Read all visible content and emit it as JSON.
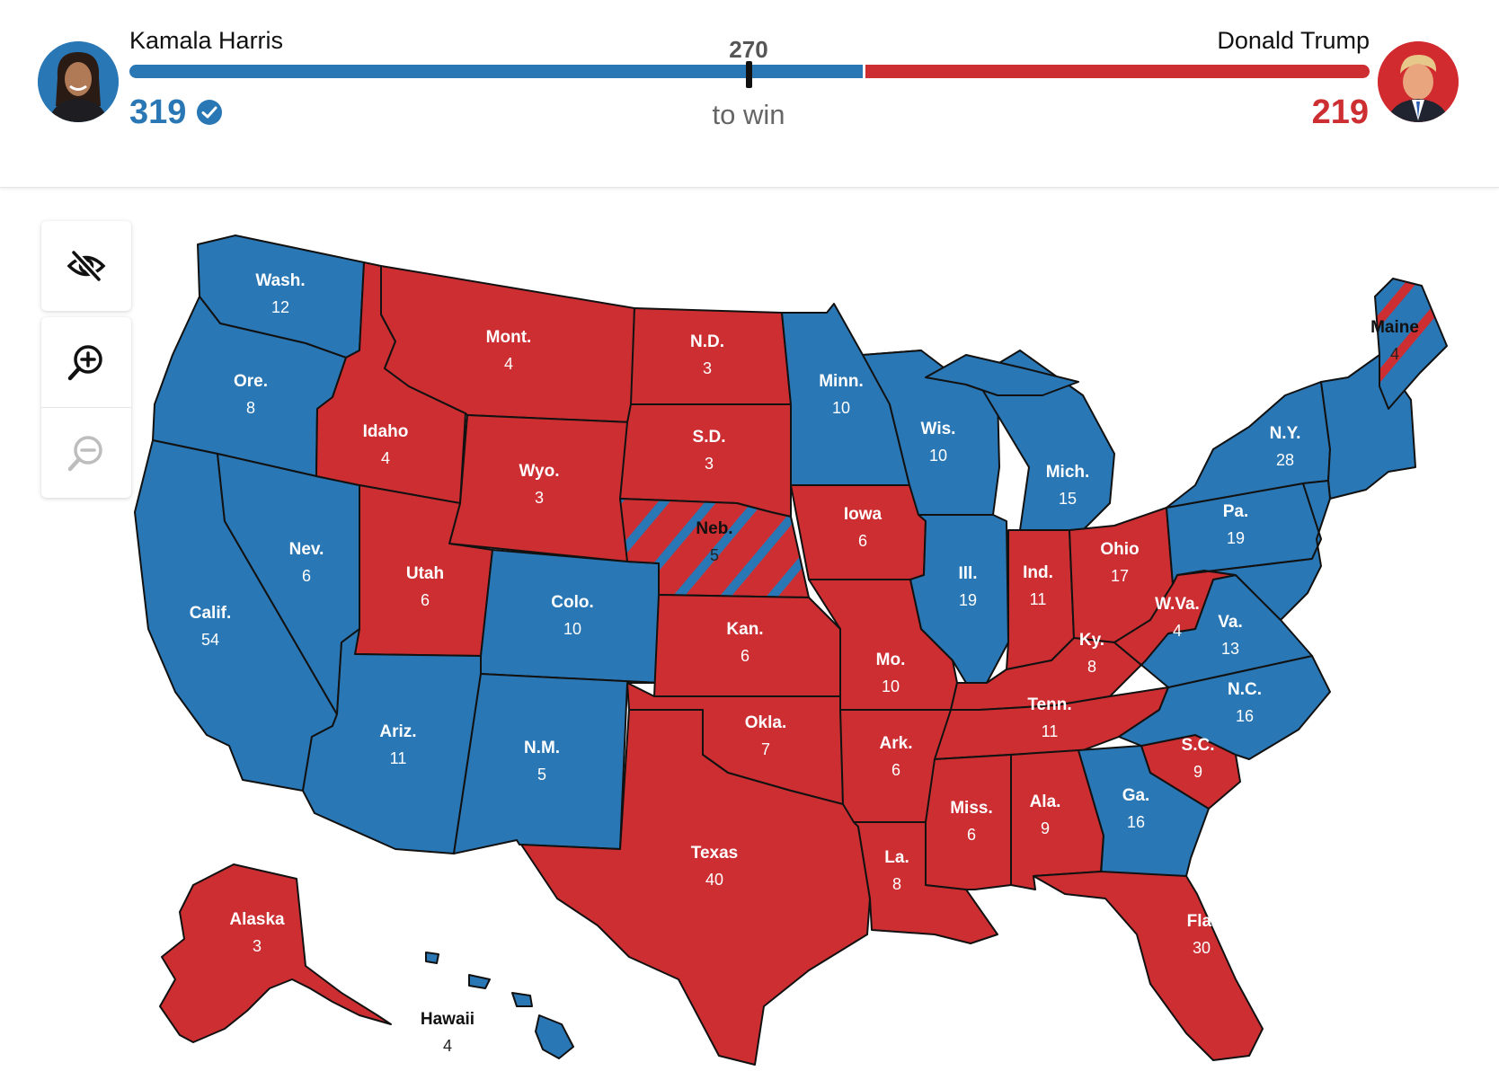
{
  "colors": {
    "dem": "#2a77b5",
    "rep": "#cc2e32"
  },
  "header": {
    "dem": {
      "name": "Kamala Harris",
      "votes": "319",
      "status": "check-icon"
    },
    "rep": {
      "name": "Donald Trump",
      "votes": "219"
    },
    "threshold": "270",
    "threshold_label": "to win"
  },
  "controls": [
    {
      "name": "hide-labels-button",
      "icon": "eye-slash-icon"
    },
    {
      "name": "zoom-in-button",
      "icon": "zoom-in-icon"
    },
    {
      "name": "zoom-out-button",
      "icon": "zoom-out-icon",
      "disabled": true
    }
  ],
  "states": [
    {
      "id": "wa",
      "name": "Wash.",
      "ev": "12",
      "party": "dem"
    },
    {
      "id": "or",
      "name": "Ore.",
      "ev": "8",
      "party": "dem"
    },
    {
      "id": "ca",
      "name": "Calif.",
      "ev": "54",
      "party": "dem"
    },
    {
      "id": "nv",
      "name": "Nev.",
      "ev": "6",
      "party": "dem"
    },
    {
      "id": "id",
      "name": "Idaho",
      "ev": "4",
      "party": "rep"
    },
    {
      "id": "mt",
      "name": "Mont.",
      "ev": "4",
      "party": "rep"
    },
    {
      "id": "wy",
      "name": "Wyo.",
      "ev": "3",
      "party": "rep"
    },
    {
      "id": "ut",
      "name": "Utah",
      "ev": "6",
      "party": "rep"
    },
    {
      "id": "az",
      "name": "Ariz.",
      "ev": "11",
      "party": "dem"
    },
    {
      "id": "co",
      "name": "Colo.",
      "ev": "10",
      "party": "dem"
    },
    {
      "id": "nm",
      "name": "N.M.",
      "ev": "5",
      "party": "dem"
    },
    {
      "id": "nd",
      "name": "N.D.",
      "ev": "3",
      "party": "rep"
    },
    {
      "id": "sd",
      "name": "S.D.",
      "ev": "3",
      "party": "rep"
    },
    {
      "id": "ne",
      "name": "Neb.",
      "ev": "5",
      "party": "split"
    },
    {
      "id": "ks",
      "name": "Kan.",
      "ev": "6",
      "party": "rep"
    },
    {
      "id": "ok",
      "name": "Okla.",
      "ev": "7",
      "party": "rep"
    },
    {
      "id": "tx",
      "name": "Texas",
      "ev": "40",
      "party": "rep"
    },
    {
      "id": "mn",
      "name": "Minn.",
      "ev": "10",
      "party": "dem"
    },
    {
      "id": "ia",
      "name": "Iowa",
      "ev": "6",
      "party": "rep"
    },
    {
      "id": "mo",
      "name": "Mo.",
      "ev": "10",
      "party": "rep"
    },
    {
      "id": "ar",
      "name": "Ark.",
      "ev": "6",
      "party": "rep"
    },
    {
      "id": "la",
      "name": "La.",
      "ev": "8",
      "party": "rep"
    },
    {
      "id": "wi",
      "name": "Wis.",
      "ev": "10",
      "party": "dem"
    },
    {
      "id": "il",
      "name": "Ill.",
      "ev": "19",
      "party": "dem"
    },
    {
      "id": "mi",
      "name": "Mich.",
      "ev": "15",
      "party": "dem"
    },
    {
      "id": "in",
      "name": "Ind.",
      "ev": "11",
      "party": "rep"
    },
    {
      "id": "oh",
      "name": "Ohio",
      "ev": "17",
      "party": "rep"
    },
    {
      "id": "ky",
      "name": "Ky.",
      "ev": "8",
      "party": "rep"
    },
    {
      "id": "tn",
      "name": "Tenn.",
      "ev": "11",
      "party": "rep"
    },
    {
      "id": "ms",
      "name": "Miss.",
      "ev": "6",
      "party": "rep"
    },
    {
      "id": "al",
      "name": "Ala.",
      "ev": "9",
      "party": "rep"
    },
    {
      "id": "ga",
      "name": "Ga.",
      "ev": "16",
      "party": "dem"
    },
    {
      "id": "fl",
      "name": "Fla.",
      "ev": "30",
      "party": "rep"
    },
    {
      "id": "sc",
      "name": "S.C.",
      "ev": "9",
      "party": "rep"
    },
    {
      "id": "nc",
      "name": "N.C.",
      "ev": "16",
      "party": "dem"
    },
    {
      "id": "va",
      "name": "Va.",
      "ev": "13",
      "party": "dem"
    },
    {
      "id": "wv",
      "name": "W.Va.",
      "ev": "4",
      "party": "rep"
    },
    {
      "id": "pa",
      "name": "Pa.",
      "ev": "19",
      "party": "dem"
    },
    {
      "id": "ny",
      "name": "N.Y.",
      "ev": "28",
      "party": "dem"
    },
    {
      "id": "me",
      "name": "Maine",
      "ev": "4",
      "party": "split"
    },
    {
      "id": "ak",
      "name": "Alaska",
      "ev": "3",
      "party": "rep"
    },
    {
      "id": "hi",
      "name": "Hawaii",
      "ev": "4",
      "party": "dem"
    }
  ]
}
